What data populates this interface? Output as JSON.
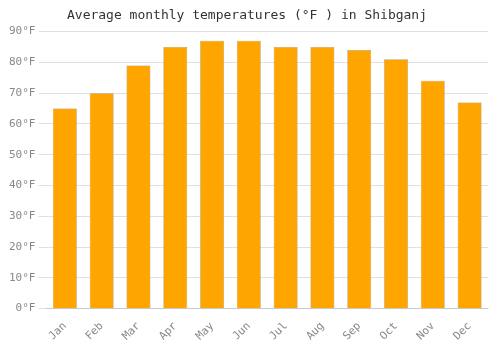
{
  "chart_data": {
    "type": "bar",
    "title": "Average monthly temperatures (°F ) in Shibganj",
    "categories": [
      "Jan",
      "Feb",
      "Mar",
      "Apr",
      "May",
      "Jun",
      "Jul",
      "Aug",
      "Sep",
      "Oct",
      "Nov",
      "Dec"
    ],
    "values": [
      65,
      70,
      79,
      85,
      87,
      87,
      85,
      85,
      84,
      81,
      74,
      67
    ],
    "color": "#FFA500",
    "ylim": [
      0,
      90
    ],
    "yticks": [
      {
        "value": 0,
        "label": "0°F"
      },
      {
        "value": 10,
        "label": "10°F"
      },
      {
        "value": 20,
        "label": "20°F"
      },
      {
        "value": 30,
        "label": "30°F"
      },
      {
        "value": 40,
        "label": "40°F"
      },
      {
        "value": 50,
        "label": "50°F"
      },
      {
        "value": 60,
        "label": "60°F"
      },
      {
        "value": 70,
        "label": "70°F"
      },
      {
        "value": 80,
        "label": "80°F"
      },
      {
        "value": 90,
        "label": "90°F"
      }
    ],
    "grid": true
  }
}
